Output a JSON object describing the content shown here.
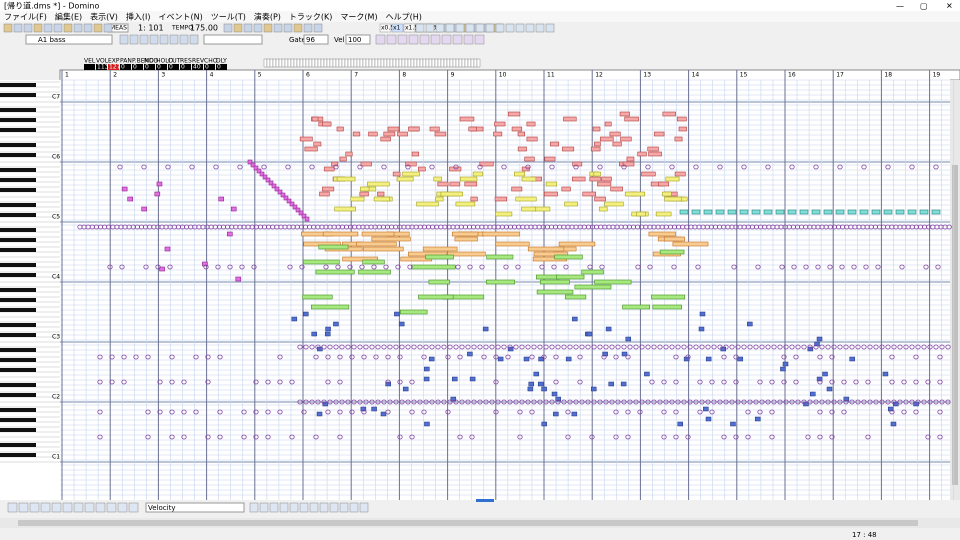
{
  "title_bar": {
    "title": "[帰り道.dms *] - Domino"
  },
  "menu": [
    "ファイル(F)",
    "編集(E)",
    "表示(V)",
    "挿入(I)",
    "イベント(N)",
    "ツール(T)",
    "演奏(P)",
    "トラック(K)",
    "マーク(M)",
    "ヘルプ(H)"
  ],
  "toolbar": {
    "meas_label": "MEAS",
    "meas": "1: 101",
    "tempo_label": "TEMPO",
    "tempo": "175.00",
    "zoom": [
      "x0.5",
      "x1",
      "x1.5",
      "x2",
      "x3"
    ],
    "track": "A1 bass",
    "gate_label": "Gate",
    "gate": "96",
    "vel_label": "Vel",
    "vel": "100"
  },
  "controllers": {
    "labels": [
      "VEL",
      "VOL",
      "EXP",
      "PAN",
      "P.BEND",
      "MOD",
      "HOLD",
      "CUT",
      "RES",
      "REV",
      "CHO",
      "DLY"
    ],
    "values": [
      "",
      "113",
      "127",
      "0",
      "0",
      "0",
      "0",
      "0",
      "0",
      "40",
      "0",
      "0"
    ]
  },
  "ruler": {
    "measures": [
      "1",
      "2",
      "3",
      "4",
      "5",
      "6",
      "7",
      "8",
      "9",
      "10",
      "11",
      "12",
      "13",
      "14",
      "15",
      "16",
      "17",
      "18",
      "19"
    ]
  },
  "keyboard": {
    "octaves": [
      "C7",
      "C6",
      "C5",
      "C4",
      "C3",
      "C2",
      "C1"
    ]
  },
  "bottom": {
    "lane": "Velocity"
  },
  "status": {
    "position": "17 : 48"
  }
}
